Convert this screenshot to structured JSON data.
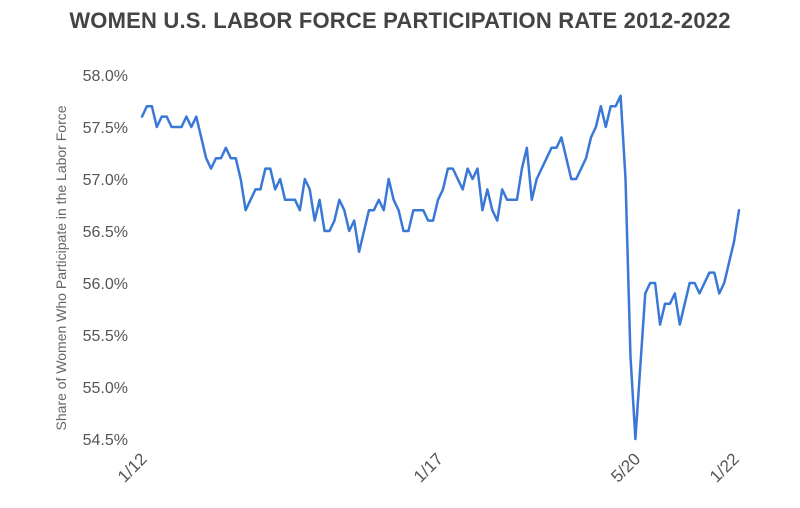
{
  "chart_data": {
    "type": "line",
    "title": "WOMEN U.S. LABOR FORCE PARTICIPATION RATE 2012-2022",
    "xlabel": "",
    "ylabel": "Share of Women Who Participate in the Labor Force",
    "ylim": [
      54.5,
      58.0
    ],
    "y_ticks": [
      58.0,
      57.5,
      57.0,
      56.5,
      56.0,
      55.5,
      55.0,
      54.5
    ],
    "y_tick_labels": [
      "58.0%",
      "57.5%",
      "57.0%",
      "56.5%",
      "56.0%",
      "55.5%",
      "55.0%",
      "54.5%"
    ],
    "x_ticks": [
      {
        "label": "1/12",
        "index": 0
      },
      {
        "label": "1/17",
        "index": 60
      },
      {
        "label": "5/20",
        "index": 100
      },
      {
        "label": "1/22",
        "index": 120
      }
    ],
    "grid": false,
    "legend": "none",
    "line_color": "#3a78d8",
    "series": [
      {
        "values": [
          57.6,
          57.7,
          57.7,
          57.5,
          57.6,
          57.6,
          57.5,
          57.5,
          57.5,
          57.6,
          57.5,
          57.6,
          57.4,
          57.2,
          57.1,
          57.2,
          57.2,
          57.3,
          57.2,
          57.2,
          57.0,
          56.7,
          56.8,
          56.9,
          56.9,
          57.1,
          57.1,
          56.9,
          57.0,
          56.8,
          56.8,
          56.8,
          56.7,
          57.0,
          56.9,
          56.6,
          56.8,
          56.5,
          56.5,
          56.6,
          56.8,
          56.7,
          56.5,
          56.6,
          56.3,
          56.5,
          56.7,
          56.7,
          56.8,
          56.7,
          57.0,
          56.8,
          56.7,
          56.5,
          56.5,
          56.7,
          56.7,
          56.7,
          56.6,
          56.6,
          56.8,
          56.9,
          57.1,
          57.1,
          57.0,
          56.9,
          57.1,
          57.0,
          57.1,
          56.7,
          56.9,
          56.7,
          56.6,
          56.9,
          56.8,
          56.8,
          56.8,
          57.1,
          57.3,
          56.8,
          57.0,
          57.1,
          57.2,
          57.3,
          57.3,
          57.4,
          57.2,
          57.0,
          57.0,
          57.1,
          57.2,
          57.4,
          57.5,
          57.7,
          57.5,
          57.7,
          57.7,
          57.8,
          57.0,
          55.3,
          54.5,
          55.2,
          55.9,
          56.0,
          56.0,
          55.6,
          55.8,
          55.8,
          55.9,
          55.6,
          55.8,
          56.0,
          56.0,
          55.9,
          56.0,
          56.1,
          56.1,
          55.9,
          56.0,
          56.2,
          56.4,
          56.7
        ]
      }
    ]
  }
}
